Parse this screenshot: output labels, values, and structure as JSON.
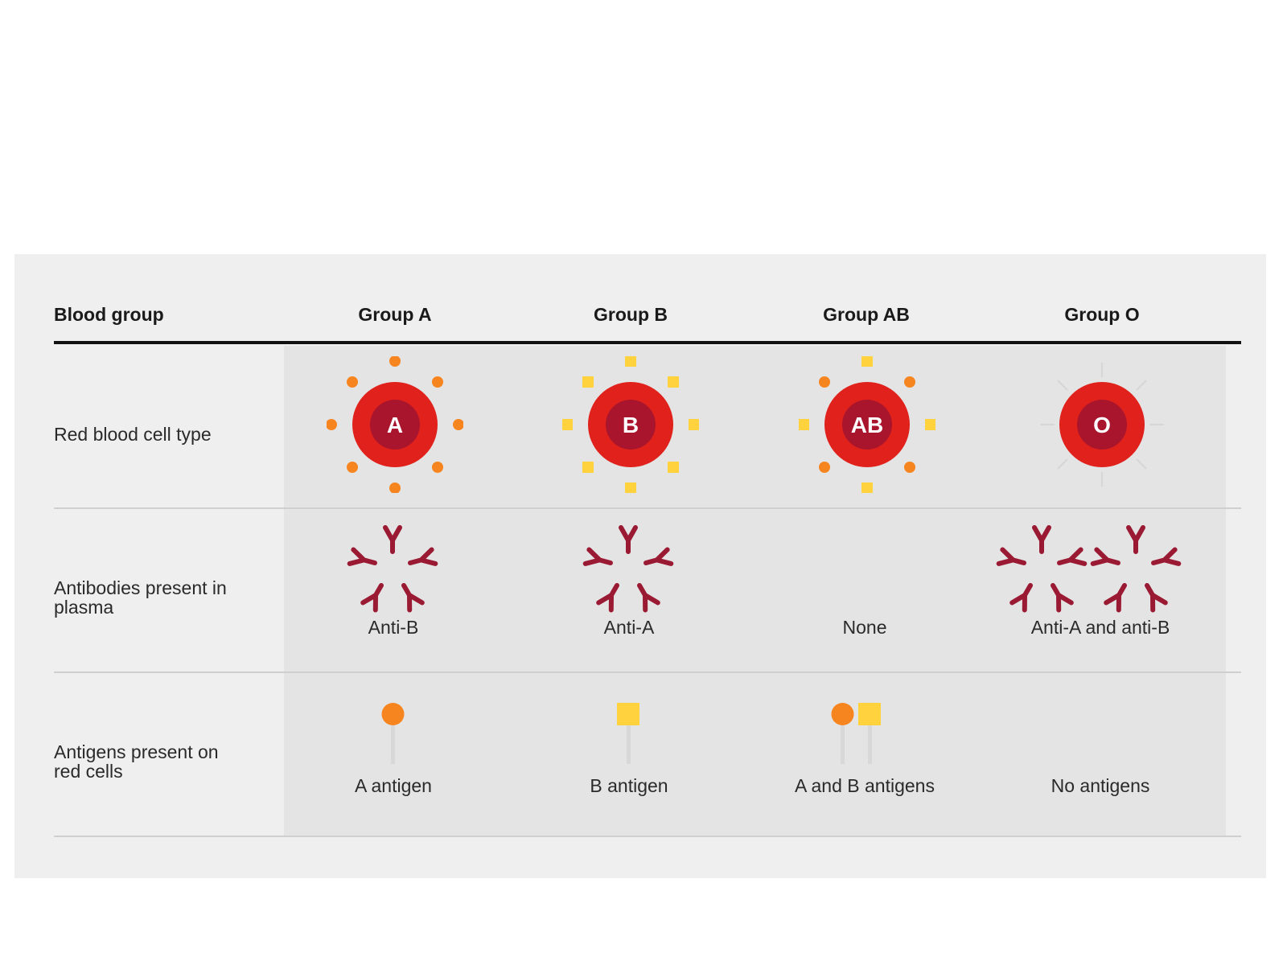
{
  "header": {
    "row_label": "Blood group",
    "groups": [
      "Group A",
      "Group B",
      "Group AB",
      "Group O"
    ]
  },
  "rows": {
    "cell_type": "Red blood cell type",
    "antibodies": "Antibodies present in plasma",
    "antigens": "Antigens present on red cells"
  },
  "cells": [
    {
      "letter": "A",
      "antibody": "Anti-B",
      "antigen": "A antigen"
    },
    {
      "letter": "B",
      "antibody": "Anti-A",
      "antigen": "B antigen"
    },
    {
      "letter": "AB",
      "antibody": "None",
      "antigen": "A and B antigens"
    },
    {
      "letter": "O",
      "antibody": "Anti-A and anti-B",
      "antigen": "No antigens"
    }
  ],
  "colors": {
    "cell_outer": "#e0211c",
    "cell_inner": "#a8152d",
    "antigen_a": "#f7851f",
    "antigen_b": "#ffd23e",
    "antibody": "#9b1a33",
    "panel_bg": "#efefef"
  }
}
